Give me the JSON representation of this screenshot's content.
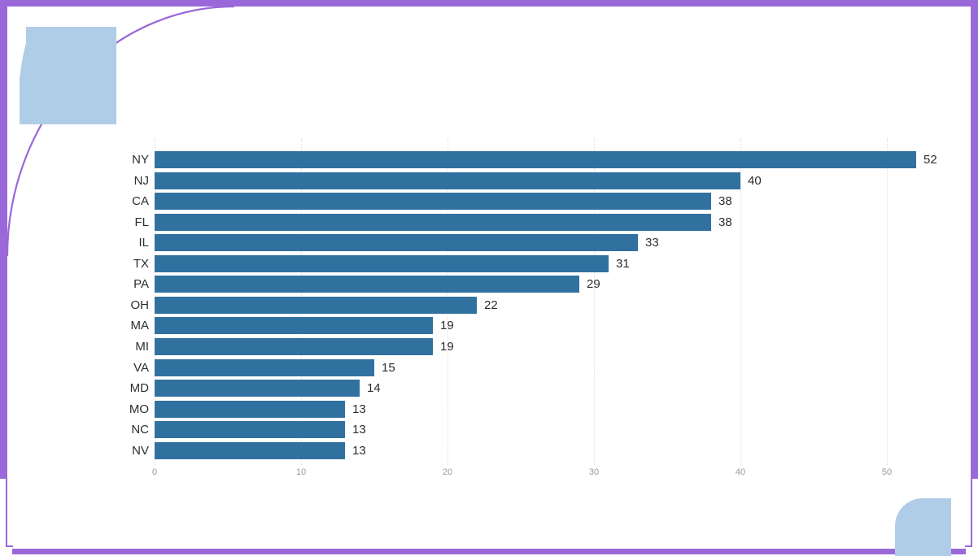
{
  "theme": {
    "frame_purple": "#9a68d9",
    "corner_light_blue": "#b0cde7",
    "background": "#ffffff"
  },
  "chart_data": {
    "type": "bar",
    "orientation": "horizontal",
    "title": "",
    "xlabel": "",
    "ylabel": "",
    "categories": [
      "NY",
      "NJ",
      "CA",
      "FL",
      "IL",
      "TX",
      "PA",
      "OH",
      "MA",
      "MI",
      "VA",
      "MD",
      "MO",
      "NC",
      "NV"
    ],
    "values": [
      52,
      40,
      38,
      38,
      33,
      31,
      29,
      22,
      19,
      19,
      15,
      14,
      13,
      13,
      13
    ],
    "x_ticks": [
      0,
      10,
      20,
      30,
      40,
      50
    ],
    "xlim": [
      0,
      55
    ],
    "data_labels": true,
    "grid": "vertical-dotted",
    "legend": "none",
    "bar_color": "#31719f",
    "data_label_color": "#2d2d2d",
    "category_label_color": "#2d2d2d",
    "tick_label_color": "#9a9a9a",
    "gridline_color": "#dedede"
  }
}
